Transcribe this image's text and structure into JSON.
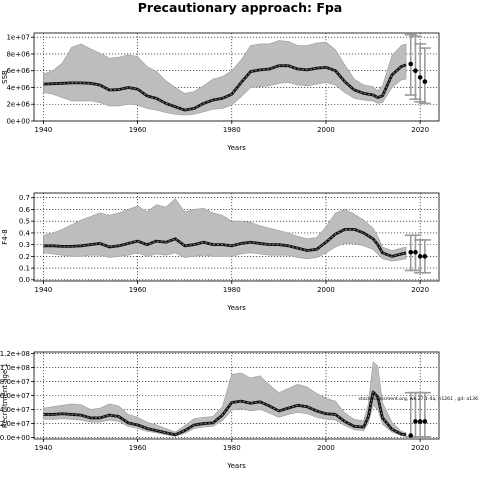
{
  "figure_title": "Precautionary approach: Fpa",
  "chart_data": [
    {
      "type": "line",
      "ylabel": "SSB",
      "xlabel": "Years",
      "xlim": [
        1938,
        2024
      ],
      "ylim": [
        0,
        10500000
      ],
      "x_ticks": [
        1940,
        1960,
        1980,
        2000,
        2020
      ],
      "y_ticks": [
        0,
        2000000,
        4000000,
        6000000,
        8000000,
        10000000
      ],
      "y_tick_labels": [
        "0e+00",
        "2e+06",
        "4e+06",
        "6e+06",
        "8e+06",
        "1e+07"
      ],
      "grid": true,
      "years": [
        1940,
        1942,
        1944,
        1946,
        1948,
        1950,
        1952,
        1954,
        1956,
        1958,
        1960,
        1962,
        1964,
        1966,
        1968,
        1970,
        1972,
        1974,
        1976,
        1978,
        1980,
        1982,
        1984,
        1986,
        1988,
        1990,
        1992,
        1994,
        1996,
        1998,
        2000,
        2002,
        2004,
        2006,
        2008,
        2010,
        2011,
        2012,
        2014,
        2016,
        2017
      ],
      "median": [
        4400000,
        4450000,
        4500000,
        4550000,
        4550000,
        4500000,
        4300000,
        3700000,
        3750000,
        4000000,
        3800000,
        3000000,
        2700000,
        2100000,
        1700000,
        1300000,
        1500000,
        2100000,
        2500000,
        2700000,
        3200000,
        4600000,
        5900000,
        6100000,
        6200000,
        6600000,
        6600000,
        6200000,
        6100000,
        6300000,
        6400000,
        6000000,
        4700000,
        3700000,
        3300000,
        3100000,
        2800000,
        3000000,
        5500000,
        6500000,
        6700000
      ],
      "lower": [
        3400000,
        3200000,
        2800000,
        2400000,
        2400000,
        2400000,
        2200000,
        1800000,
        1800000,
        2000000,
        1900000,
        1500000,
        1300000,
        1000000,
        800000,
        700000,
        800000,
        1100000,
        1400000,
        1500000,
        1900000,
        2900000,
        4000000,
        4100000,
        4200000,
        4500000,
        4600000,
        4300000,
        4200000,
        4400000,
        4600000,
        4300000,
        3400000,
        2700000,
        2500000,
        2400000,
        2100000,
        2200000,
        4000000,
        4900000,
        5000000
      ],
      "upper": [
        5600000,
        6000000,
        6900000,
        8800000,
        9200000,
        8600000,
        8100000,
        7500000,
        7600000,
        7900000,
        7700000,
        6500000,
        5900000,
        4800000,
        4000000,
        3300000,
        3500000,
        4200000,
        5000000,
        5300000,
        6000000,
        7300000,
        9000000,
        9200000,
        9200000,
        9600000,
        9500000,
        9000000,
        9000000,
        9300000,
        9400000,
        8500000,
        6700000,
        5000000,
        4300000,
        4100000,
        3600000,
        4200000,
        7800000,
        9000000,
        9200000
      ],
      "forecast_years": [
        2018,
        2019,
        2020,
        2021
      ],
      "forecast_points": [
        6800000,
        6000000,
        5200000,
        4700000
      ],
      "forecast_intervals": [
        {
          "year": 2018,
          "low": 3100000,
          "high": 10300000
        },
        {
          "year": 2019,
          "low": 2600000,
          "high": 10100000
        },
        {
          "year": 2020,
          "low": 2300000,
          "high": 9200000
        },
        {
          "year": 2021,
          "low": 2100000,
          "high": 8700000
        }
      ]
    },
    {
      "type": "line",
      "ylabel": "F4-8",
      "xlabel": "Years",
      "xlim": [
        1938,
        2024
      ],
      "ylim": [
        -0.01,
        0.74
      ],
      "x_ticks": [
        1940,
        1960,
        1980,
        2000,
        2020
      ],
      "y_ticks": [
        0,
        0.1,
        0.2,
        0.3,
        0.4,
        0.5,
        0.6,
        0.7
      ],
      "y_tick_labels": [
        "0.0",
        "0.1",
        "0.2",
        "0.3",
        "0.4",
        "0.5",
        "0.6",
        "0.7"
      ],
      "grid": true,
      "years": [
        1940,
        1942,
        1944,
        1946,
        1948,
        1950,
        1952,
        1954,
        1956,
        1958,
        1960,
        1962,
        1964,
        1966,
        1968,
        1970,
        1972,
        1974,
        1976,
        1978,
        1980,
        1982,
        1984,
        1986,
        1988,
        1990,
        1992,
        1994,
        1996,
        1998,
        2000,
        2002,
        2004,
        2006,
        2008,
        2010,
        2011,
        2012,
        2014,
        2016,
        2017
      ],
      "median": [
        0.29,
        0.29,
        0.285,
        0.285,
        0.29,
        0.3,
        0.31,
        0.28,
        0.29,
        0.31,
        0.33,
        0.3,
        0.33,
        0.32,
        0.35,
        0.29,
        0.3,
        0.32,
        0.3,
        0.3,
        0.29,
        0.31,
        0.32,
        0.31,
        0.3,
        0.3,
        0.29,
        0.27,
        0.25,
        0.26,
        0.32,
        0.39,
        0.43,
        0.43,
        0.4,
        0.35,
        0.3,
        0.23,
        0.2,
        0.22,
        0.23
      ],
      "lower": [
        0.23,
        0.22,
        0.21,
        0.2,
        0.2,
        0.21,
        0.21,
        0.19,
        0.2,
        0.21,
        0.23,
        0.2,
        0.22,
        0.21,
        0.23,
        0.19,
        0.2,
        0.21,
        0.2,
        0.2,
        0.2,
        0.22,
        0.23,
        0.22,
        0.21,
        0.21,
        0.21,
        0.19,
        0.18,
        0.19,
        0.23,
        0.28,
        0.31,
        0.31,
        0.29,
        0.26,
        0.22,
        0.18,
        0.16,
        0.17,
        0.18
      ],
      "upper": [
        0.38,
        0.4,
        0.43,
        0.47,
        0.51,
        0.54,
        0.57,
        0.55,
        0.57,
        0.6,
        0.63,
        0.58,
        0.64,
        0.62,
        0.69,
        0.58,
        0.6,
        0.61,
        0.57,
        0.55,
        0.5,
        0.5,
        0.49,
        0.46,
        0.44,
        0.42,
        0.4,
        0.37,
        0.35,
        0.36,
        0.45,
        0.57,
        0.6,
        0.56,
        0.51,
        0.44,
        0.37,
        0.28,
        0.25,
        0.27,
        0.28
      ],
      "forecast_years": [
        2018,
        2019,
        2020,
        2021
      ],
      "forecast_points": [
        0.235,
        0.235,
        0.2,
        0.2
      ],
      "forecast_intervals": [
        {
          "year": 2018,
          "low": 0.08,
          "high": 0.38
        },
        {
          "year": 2019,
          "low": 0.08,
          "high": 0.38
        },
        {
          "year": 2020,
          "low": 0.06,
          "high": 0.34
        },
        {
          "year": 2021,
          "low": 0.06,
          "high": 0.34
        }
      ]
    },
    {
      "type": "line",
      "ylabel": "Recruitment age 1",
      "xlabel": "Years",
      "xlim": [
        1938,
        2024
      ],
      "ylim": [
        -2000000,
        122000000
      ],
      "x_ticks": [
        1940,
        1960,
        1980,
        2000,
        2020
      ],
      "y_ticks": [
        0,
        20000000,
        40000000,
        60000000,
        80000000,
        100000000,
        120000000
      ],
      "y_tick_labels": [
        "0.0e+00",
        "2.0e+07",
        "4.0e+07",
        "6.0e+07",
        "8.0e+07",
        "1.0e+08",
        "1.2e+08"
      ],
      "grid": true,
      "annotation": "stockassessment.org, wk.27.1-4a, ri1261 , git: a136",
      "years": [
        1940,
        1942,
        1944,
        1946,
        1948,
        1950,
        1952,
        1954,
        1956,
        1958,
        1960,
        1962,
        1964,
        1966,
        1968,
        1970,
        1972,
        1974,
        1976,
        1978,
        1980,
        1982,
        1984,
        1986,
        1988,
        1990,
        1992,
        1994,
        1996,
        1998,
        2000,
        2002,
        2004,
        2006,
        2008,
        2009,
        2010,
        2011,
        2012,
        2014,
        2016,
        2017
      ],
      "median": [
        33000000,
        33000000,
        34000000,
        33000000,
        32000000,
        28000000,
        28000000,
        32000000,
        30000000,
        21000000,
        18000000,
        13000000,
        10000000,
        7000000,
        4000000,
        10000000,
        18000000,
        20000000,
        21000000,
        32000000,
        50000000,
        52000000,
        49000000,
        51000000,
        45000000,
        38000000,
        42000000,
        46000000,
        44000000,
        38000000,
        34000000,
        33000000,
        23000000,
        16000000,
        15000000,
        30000000,
        65000000,
        58000000,
        28000000,
        12000000,
        5000000,
        4000000
      ],
      "lower": [
        26000000,
        26000000,
        27000000,
        26000000,
        25000000,
        22000000,
        22000000,
        25000000,
        23000000,
        16000000,
        13000000,
        9000000,
        7000000,
        4000000,
        2000000,
        6000000,
        13000000,
        15000000,
        16000000,
        24000000,
        39000000,
        41000000,
        38000000,
        40000000,
        35000000,
        29000000,
        33000000,
        36000000,
        34000000,
        29000000,
        26000000,
        25000000,
        17000000,
        11000000,
        10000000,
        20000000,
        46000000,
        40000000,
        19000000,
        8000000,
        3000000,
        2000000
      ],
      "upper": [
        42000000,
        44000000,
        46000000,
        48000000,
        47000000,
        40000000,
        42000000,
        48000000,
        45000000,
        33000000,
        29000000,
        22000000,
        18000000,
        13000000,
        8000000,
        17000000,
        27000000,
        29000000,
        30000000,
        44000000,
        90000000,
        92000000,
        85000000,
        88000000,
        75000000,
        64000000,
        70000000,
        76000000,
        72000000,
        63000000,
        56000000,
        52000000,
        35000000,
        26000000,
        24000000,
        48000000,
        108000000,
        102000000,
        50000000,
        22000000,
        9000000,
        7000000
      ],
      "forecast_years": [
        2018,
        2019,
        2020,
        2021
      ],
      "forecast_points": [
        3000000,
        23000000,
        23000000,
        23000000
      ],
      "forecast_intervals": [
        {
          "year": 2018,
          "low": 1000000,
          "high": 64000000
        },
        {
          "year": 2019,
          "low": 1000000,
          "high": 64000000
        },
        {
          "year": 2020,
          "low": 1000000,
          "high": 64000000
        },
        {
          "year": 2021,
          "low": 1000000,
          "high": 64000000
        }
      ]
    }
  ]
}
